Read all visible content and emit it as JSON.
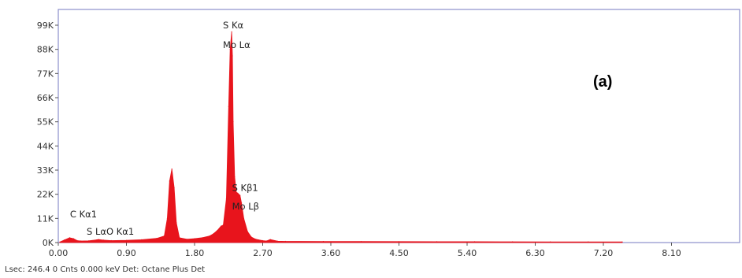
{
  "chart_data": {
    "type": "area",
    "panel_label": "(a)",
    "xlim": [
      0,
      9.0
    ],
    "ylim": [
      0,
      99000
    ],
    "x_ticks": [
      "0.00",
      "0.90",
      "1.80",
      "2.70",
      "3.60",
      "4.50",
      "5.40",
      "6.30",
      "7.20",
      "8.10"
    ],
    "x_tick_values": [
      0,
      0.9,
      1.8,
      2.7,
      3.6,
      4.5,
      5.4,
      6.3,
      7.2,
      8.1
    ],
    "y_ticks": [
      "0K",
      "11K",
      "22K",
      "33K",
      "44K",
      "55K",
      "66K",
      "77K",
      "88K",
      "99K"
    ],
    "y_tick_values": [
      0,
      11000,
      22000,
      33000,
      44000,
      55000,
      66000,
      77000,
      88000,
      99000
    ],
    "grid": false,
    "series": [
      {
        "color": "#e8141c",
        "x": [
          0.02,
          0.08,
          0.15,
          0.2,
          0.25,
          0.3,
          0.4,
          0.5,
          0.53,
          0.6,
          0.7,
          0.9,
          1.1,
          1.3,
          1.4,
          1.44,
          1.47,
          1.5,
          1.53,
          1.56,
          1.6,
          1.7,
          1.8,
          1.9,
          2.0,
          2.05,
          2.1,
          2.15,
          2.18,
          2.22,
          2.25,
          2.27,
          2.29,
          2.3,
          2.31,
          2.33,
          2.35,
          2.37,
          2.4,
          2.42,
          2.45,
          2.5,
          2.55,
          2.6,
          2.65,
          2.7,
          2.75,
          2.8,
          2.9,
          3.0,
          3.5,
          4.0,
          4.5,
          5.0,
          5.5,
          6.0,
          6.5,
          7.0,
          7.45
        ],
        "y": [
          200,
          1200,
          2200,
          1800,
          900,
          700,
          800,
          1200,
          1400,
          1100,
          900,
          1000,
          1300,
          1900,
          3000,
          11000,
          28000,
          33500,
          25000,
          9000,
          2200,
          1500,
          1800,
          2200,
          3000,
          4000,
          5500,
          7500,
          8000,
          20000,
          62000,
          88000,
          96000,
          85000,
          55000,
          30000,
          23000,
          22500,
          21500,
          18000,
          11000,
          5000,
          2500,
          1600,
          1200,
          900,
          700,
          1400,
          600,
          550,
          500,
          450,
          420,
          400,
          380,
          360,
          340,
          320,
          300
        ]
      }
    ],
    "annotations": [
      {
        "text": "S  Kα",
        "x": 2.3,
        "y": 99000
      },
      {
        "text": "Mo Lα",
        "x": 2.3,
        "y": 90000
      },
      {
        "text": "S  Kβ1",
        "x": 2.42,
        "y": 25000
      },
      {
        "text": "Mo Lβ",
        "x": 2.42,
        "y": 16500
      },
      {
        "text": "C  Kα1",
        "x": 0.28,
        "y": 13000
      },
      {
        "text": "S  LαO  Kα1",
        "x": 0.5,
        "y": 5000
      }
    ],
    "status_line": "Lsec: 246.4 0 Cnts  0.000 keV Det: Octane Plus Det"
  }
}
